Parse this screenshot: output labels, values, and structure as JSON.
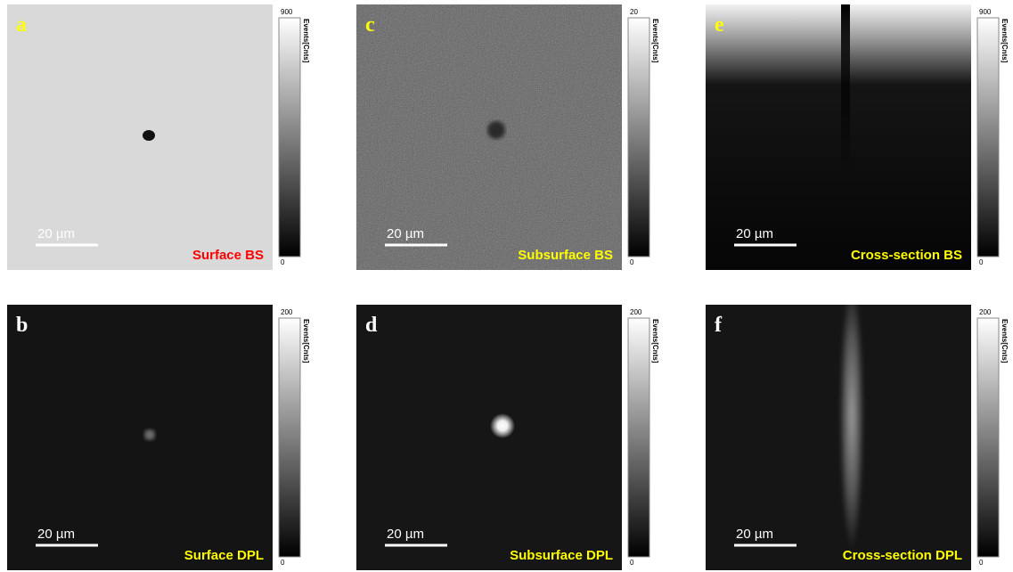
{
  "panels": [
    {
      "letter": "a",
      "caption": "Surface BS",
      "scale_bar": "20 µm",
      "colorbar": {
        "label": "Events[Cnts]",
        "max": 900,
        "min": 0
      }
    },
    {
      "letter": "b",
      "caption": "Surface DPL",
      "scale_bar": "20 µm",
      "colorbar": {
        "label": "Events[Cnts]",
        "max": 200,
        "min": 0
      }
    },
    {
      "letter": "c",
      "caption": "Subsurface BS",
      "scale_bar": "20 µm",
      "colorbar": {
        "label": "Events[Cnts]",
        "max": 20,
        "min": 0
      }
    },
    {
      "letter": "d",
      "caption": "Subsurface DPL",
      "scale_bar": "20 µm",
      "colorbar": {
        "label": "Events[Cnts]",
        "max": 200,
        "min": 0
      }
    },
    {
      "letter": "e",
      "caption": "Cross-section BS",
      "scale_bar": "20 µm",
      "colorbar": {
        "label": "Events[Cnts]",
        "max": 900,
        "min": 0
      }
    },
    {
      "letter": "f",
      "caption": "Cross-section DPL",
      "scale_bar": "20 µm",
      "colorbar": {
        "label": "Events[Cnts]",
        "max": 200,
        "min": 0
      }
    }
  ]
}
